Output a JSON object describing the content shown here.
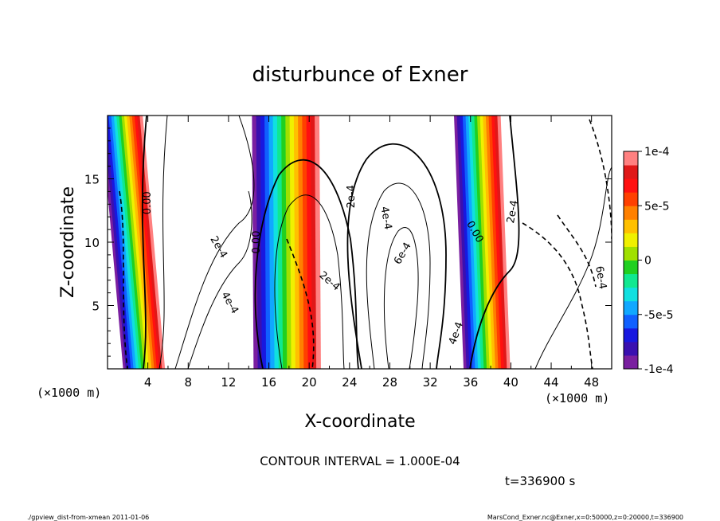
{
  "chart_data": {
    "type": "heatmap",
    "title": "disturbunce of Exner",
    "xlabel": "X-coordinate",
    "ylabel": "Z-coordinate",
    "x_unit": "(×1000 m)",
    "x_unit_right": "(×1000 m)",
    "xlim": [
      0,
      50
    ],
    "ylim": [
      0,
      20
    ],
    "xticks": [
      4,
      8,
      12,
      16,
      20,
      24,
      28,
      32,
      36,
      40,
      44,
      48
    ],
    "yticks": [
      5,
      10,
      15
    ],
    "colorbar": {
      "range": [
        -0.0001,
        0.0001
      ],
      "ticks": [
        {
          "value": 0.0001,
          "label": "1e-4"
        },
        {
          "value": 5e-05,
          "label": "5e-5"
        },
        {
          "value": 0,
          "label": "0"
        },
        {
          "value": -5e-05,
          "label": "-5e-5"
        },
        {
          "value": -0.0001,
          "label": "-1e-4"
        }
      ],
      "colors": [
        "#7a1fa0",
        "#3a10b0",
        "#1818e0",
        "#1060ff",
        "#10a8ff",
        "#10e0e0",
        "#10e890",
        "#20d020",
        "#a0e000",
        "#f0f000",
        "#ffc000",
        "#ff8000",
        "#ff4000",
        "#ff1010",
        "#e01818",
        "#ff8080"
      ]
    },
    "contour_labels": [
      {
        "text": "0.00",
        "x": 4.0,
        "y": 13.1,
        "rotate": -90
      },
      {
        "text": "0.00",
        "x": 14.8,
        "y": 10.0,
        "rotate": -90
      },
      {
        "text": "2e-4",
        "x": 24.2,
        "y": 13.6,
        "rotate": -90
      },
      {
        "text": "4e-4",
        "x": 27.6,
        "y": 11.9,
        "rotate": 80
      },
      {
        "text": "6e-4",
        "x": 29.3,
        "y": 9.1,
        "rotate": -60
      },
      {
        "text": "0.00",
        "x": 36.4,
        "y": 10.8,
        "rotate": 60
      },
      {
        "text": "2e-4",
        "x": 40.2,
        "y": 12.4,
        "rotate": -80
      },
      {
        "text": "6e-4",
        "x": 48.9,
        "y": 7.2,
        "rotate": 80
      },
      {
        "text": "2e-4",
        "x": 11.0,
        "y": 9.6,
        "rotate": 60
      },
      {
        "text": "4e-4",
        "x": 12.1,
        "y": 5.2,
        "rotate": 60
      },
      {
        "text": "2e-4",
        "x": 22.0,
        "y": 6.9,
        "rotate": 40
      },
      {
        "text": "4e-4",
        "x": 34.6,
        "y": 2.8,
        "rotate": -70
      }
    ]
  },
  "contour_interval": "CONTOUR INTERVAL = 1.000E-04",
  "time_label": "t=336900 s",
  "footer_left": "./gpview_dist-from-xmean   2011-01-06",
  "footer_right": "MarsCond_Exner.nc@Exner,x=0:50000,z=0:20000,t=336900"
}
